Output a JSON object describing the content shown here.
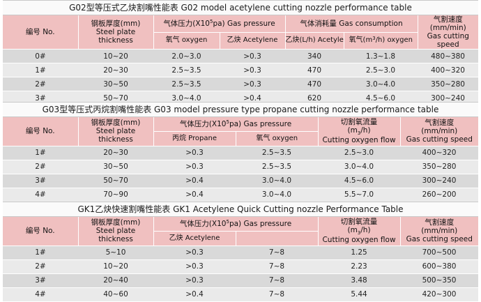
{
  "g02": {
    "title": "G02型等压式乙炔割嘴性能表 G02 model acetylene cutting nozzle performance table",
    "h_no": "编号 No.",
    "h_thick_cn": "钢板厚度(mm)",
    "h_thick_en1": "Steel plate",
    "h_thick_en2": "thickness",
    "h_pressure_pre": "气体压力(X10",
    "h_pressure_sup": "5",
    "h_pressure_post": "pa) Gas pressure",
    "h_consumption": "气体消耗量 Gas consumption",
    "h_speed_cn": "气割速度",
    "h_speed_unit": "(mm/min)",
    "h_speed_en": "Gas cutting speed",
    "h_oxygen": "氧气 oxygen",
    "h_acetylene": "乙炔 Acetylene",
    "h_cons_acet": "乙炔(L/h) Acetylene",
    "h_cons_oxy_pre": "氧气(m",
    "h_cons_oxy_sup": "3",
    "h_cons_oxy_post": "/h) oxygen",
    "rows": [
      {
        "no": "0#",
        "thick": "10~20",
        "oxy": "2.0~3.0",
        "acet": ">0.3",
        "cons_acet": "340",
        "cons_oxy": "1.3~1.8",
        "speed": "480~380"
      },
      {
        "no": "1#",
        "thick": "20~30",
        "oxy": "2.5~3.5",
        "acet": ">0.3",
        "cons_acet": "470",
        "cons_oxy": "2.5~3.0",
        "speed": "400~320"
      },
      {
        "no": "2#",
        "thick": "30~50",
        "oxy": "2.5~3.5",
        "acet": ">0.3",
        "cons_acet": "470",
        "cons_oxy": "3.0~4.0",
        "speed": "350~280"
      },
      {
        "no": "3#",
        "thick": "50~70",
        "oxy": "3.0~4.0",
        "acet": ">0.4",
        "cons_acet": "620",
        "cons_oxy": "4.5~6.0",
        "speed": "300~240"
      }
    ]
  },
  "g03": {
    "title": "G03型等压式丙烷割嘴性能表 G03 model pressure type propane cutting nozzle performance table",
    "h_no": "编号 No.",
    "h_thick_cn": "钢板厚度(mm)",
    "h_thick_en1": "Steel plate",
    "h_thick_en2": "thickness",
    "h_pressure_pre": "气体压力(X10",
    "h_pressure_sup": "5",
    "h_pressure_post": "pa) Gas pressure",
    "h_flow_cn": "切割氧流量",
    "h_flow_unit_pre": "(m",
    "h_flow_unit_sub": "3",
    "h_flow_unit_post": "/h)",
    "h_flow_en": "Cutting oxygen flow",
    "h_speed_cn": "气割速度",
    "h_speed_unit": "(mm/min)",
    "h_speed_en": "Gas cutting speed",
    "h_propane": "丙烷 Propane",
    "h_oxygen": "氧气 oxygen",
    "rows": [
      {
        "no": "1#",
        "thick": "20~30",
        "propane": ">0.3",
        "oxy": "2.5~3.5",
        "flow": "2.5~3.0",
        "speed": "400~320"
      },
      {
        "no": "2#",
        "thick": "30~50",
        "propane": ">0.3",
        "oxy": "2.5~3.5",
        "flow": "3.0~4.0",
        "speed": "350~280"
      },
      {
        "no": "3#",
        "thick": "50~70",
        "propane": ">0.4",
        "oxy": "3.0~4.0",
        "flow": "4.5~6.0",
        "speed": "300~240"
      },
      {
        "no": "4#",
        "thick": "70~90",
        "propane": ">0.4",
        "oxy": "3.0~4.0",
        "flow": "5.5~7.0",
        "speed": "260~200"
      }
    ]
  },
  "gk1": {
    "title": "GK1乙炔快速割嘴性能表 GK1 Acetylene Quick Cutting nozzle Performance Table",
    "h_no": "编号 No.",
    "h_thick_cn": "钢板厚度(mm)",
    "h_thick_en1": "Steel plate",
    "h_thick_en2": "thickness",
    "h_pressure_pre": "气体压力(X10",
    "h_pressure_sup": "5",
    "h_pressure_post": "pa) Gas pressure",
    "h_flow_cn": "切割氧流量",
    "h_flow_unit_pre": "(m",
    "h_flow_unit_sub": "3",
    "h_flow_unit_post": "/h)",
    "h_flow_en": "Cutting oxygen flow",
    "h_speed_cn": "气割速度",
    "h_speed_unit": "(mm/min)",
    "h_speed_en": "Gas cutting speed",
    "h_acetylene": "乙炔 Acetylene",
    "rows": [
      {
        "no": "1#",
        "thick": "5~10",
        "acet": ">0.3",
        "oxy": "7~8",
        "flow": "1.25",
        "speed": "700~500"
      },
      {
        "no": "2#",
        "thick": "10~20",
        "acet": ">0.3",
        "oxy": "7~8",
        "flow": "2.23",
        "speed": "600~380"
      },
      {
        "no": "3#",
        "thick": "20~40",
        "acet": ">0.3",
        "oxy": "7~8",
        "flow": "3.48",
        "speed": "500~350"
      },
      {
        "no": "4#",
        "thick": "40~60",
        "acet": ">0.4",
        "oxy": "7~8",
        "flow": "5.44",
        "speed": "420~300"
      }
    ]
  }
}
